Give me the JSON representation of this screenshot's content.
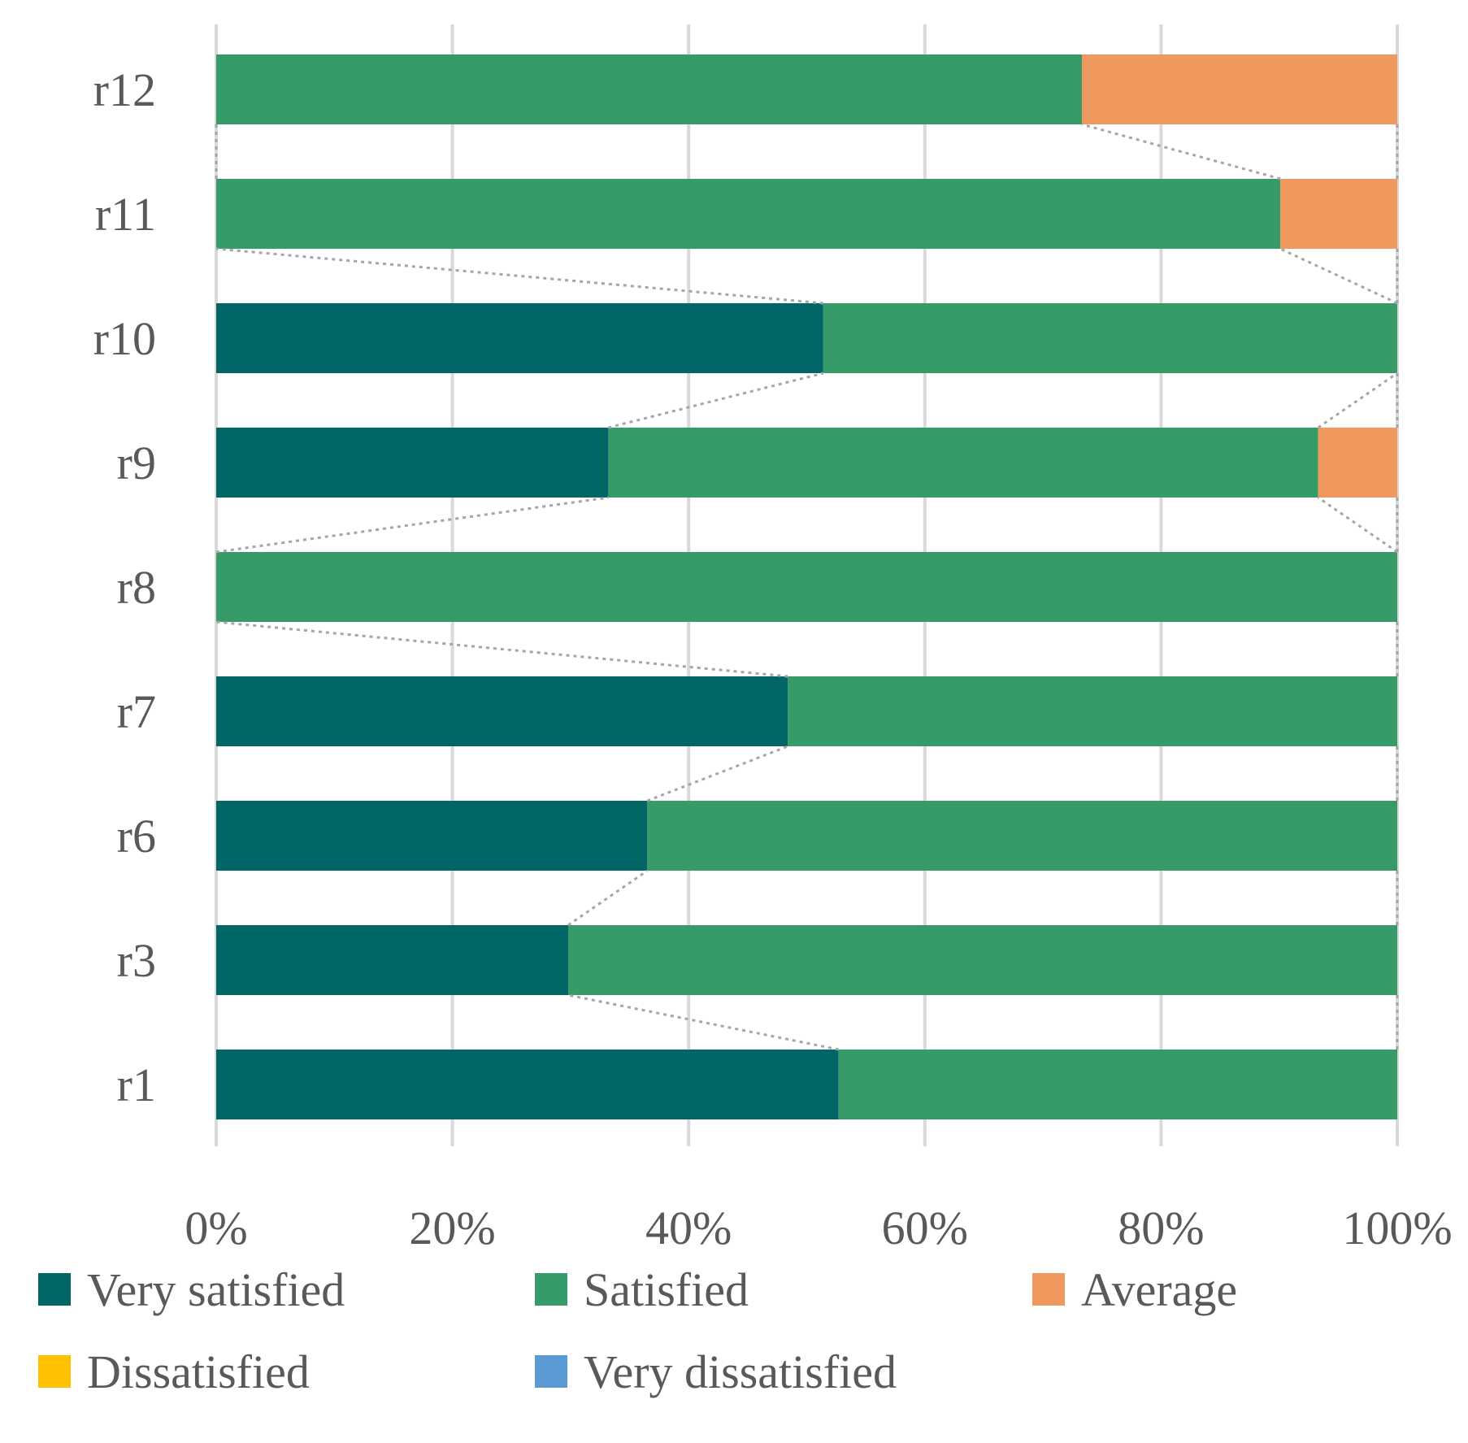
{
  "chart_data": {
    "type": "bar",
    "orientation": "horizontal",
    "stacked": "percent",
    "title": "",
    "xlabel": "",
    "ylabel": "",
    "categories": [
      "r1",
      "r3",
      "r6",
      "r7",
      "r8",
      "r9",
      "r10",
      "r11",
      "r12"
    ],
    "xlim": [
      0,
      100
    ],
    "x_ticks": [
      "0%",
      "20%",
      "40%",
      "60%",
      "80%",
      "100%"
    ],
    "grid": true,
    "series_lines": true,
    "legend_position": "bottom",
    "series": [
      {
        "name": "Very satisfied",
        "color": "#036666",
        "values": [
          52.7,
          29.8,
          36.5,
          48.4,
          0,
          33.2,
          51.4,
          0,
          0
        ]
      },
      {
        "name": "Satisfied",
        "color": "#369B69",
        "values": [
          47.3,
          70.2,
          63.5,
          51.6,
          100,
          60.1,
          48.6,
          90.1,
          73.3
        ]
      },
      {
        "name": "Average",
        "color": "#F0995E",
        "values": [
          0,
          0,
          0,
          0,
          0,
          6.7,
          0,
          9.9,
          26.7
        ]
      },
      {
        "name": "Dissatisfied",
        "color": "#FFC000",
        "values": [
          0,
          0,
          0,
          0,
          0,
          0,
          0,
          0,
          0
        ]
      },
      {
        "name": "Very dissatisfied",
        "color": "#5B9BD5",
        "values": [
          0,
          0,
          0,
          0,
          0,
          0,
          0,
          0,
          0
        ]
      }
    ]
  }
}
